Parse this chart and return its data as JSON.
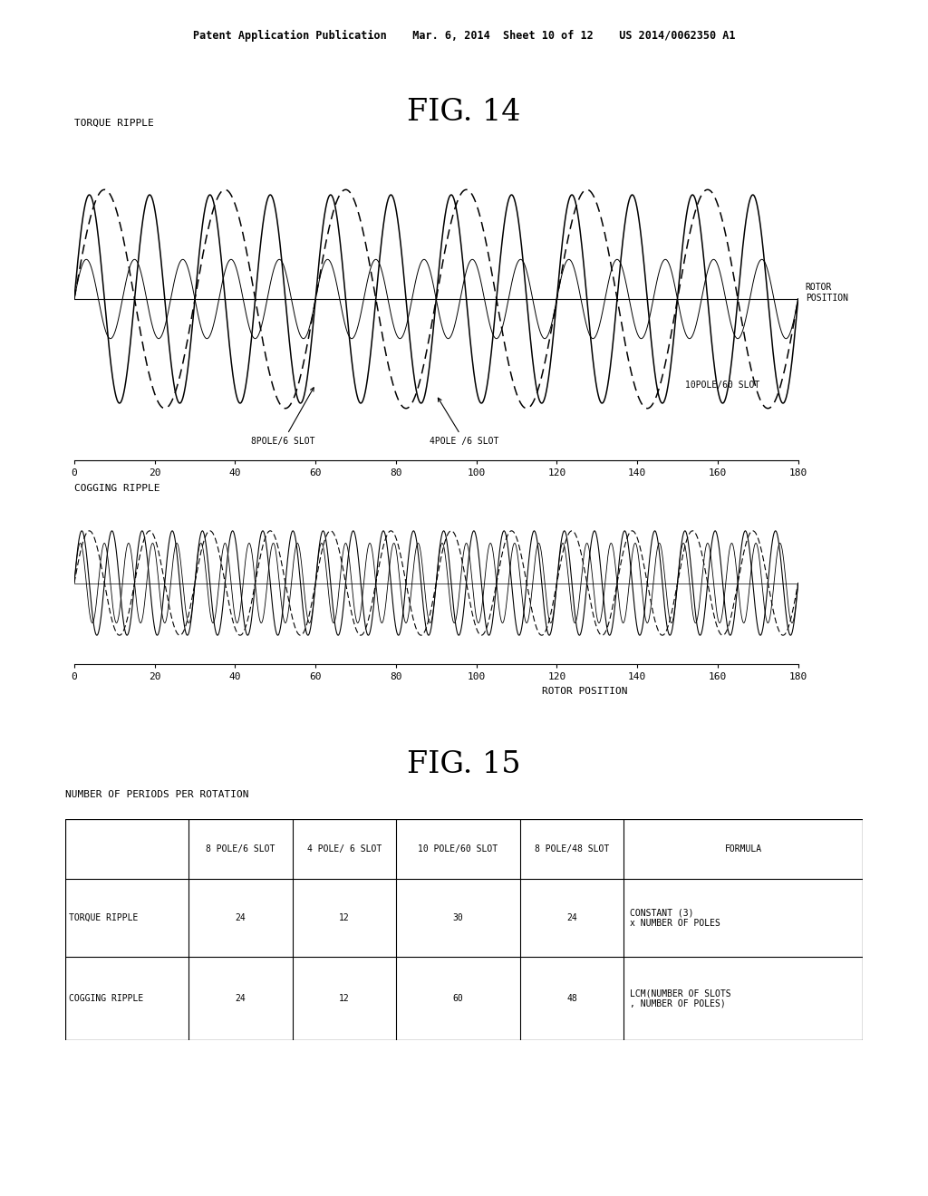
{
  "header_text": "Patent Application Publication    Mar. 6, 2014  Sheet 10 of 12    US 2014/0062350 A1",
  "fig14_title": "FIG. 14",
  "fig15_title": "FIG. 15",
  "torque_ripple_label": "TORQUE RIPPLE",
  "cogging_ripple_label": "COGGING RIPPLE",
  "rotor_position_label1": "ROTOR\nPOSITION",
  "rotor_position_label2": "ROTOR POSITION",
  "ann1": "8POLE/6 SLOT",
  "ann2": "4POLE /6 SLOT",
  "ann3": "10POLE/60 SLOT",
  "x_ticks": [
    0,
    20,
    40,
    60,
    80,
    100,
    120,
    140,
    160,
    180
  ],
  "table_title": "NUMBER OF PERIODS PER ROTATION",
  "table_col_labels": [
    "",
    "8 POLE/6 SLOT",
    "4 POLE/ 6 SLOT",
    "10 POLE/60 SLOT",
    "8 POLE/48 SLOT",
    "FORMULA"
  ],
  "table_row1": [
    "TORQUE RIPPLE",
    "24",
    "12",
    "30",
    "24",
    "CONSTANT (3)\nx NUMBER OF POLES"
  ],
  "table_row2": [
    "COGGING RIPPLE",
    "24",
    "12",
    "60",
    "48",
    "LCM(NUMBER OF SLOTS\n, NUMBER OF POLES)"
  ],
  "bg_color": "#ffffff",
  "line_color": "#000000"
}
